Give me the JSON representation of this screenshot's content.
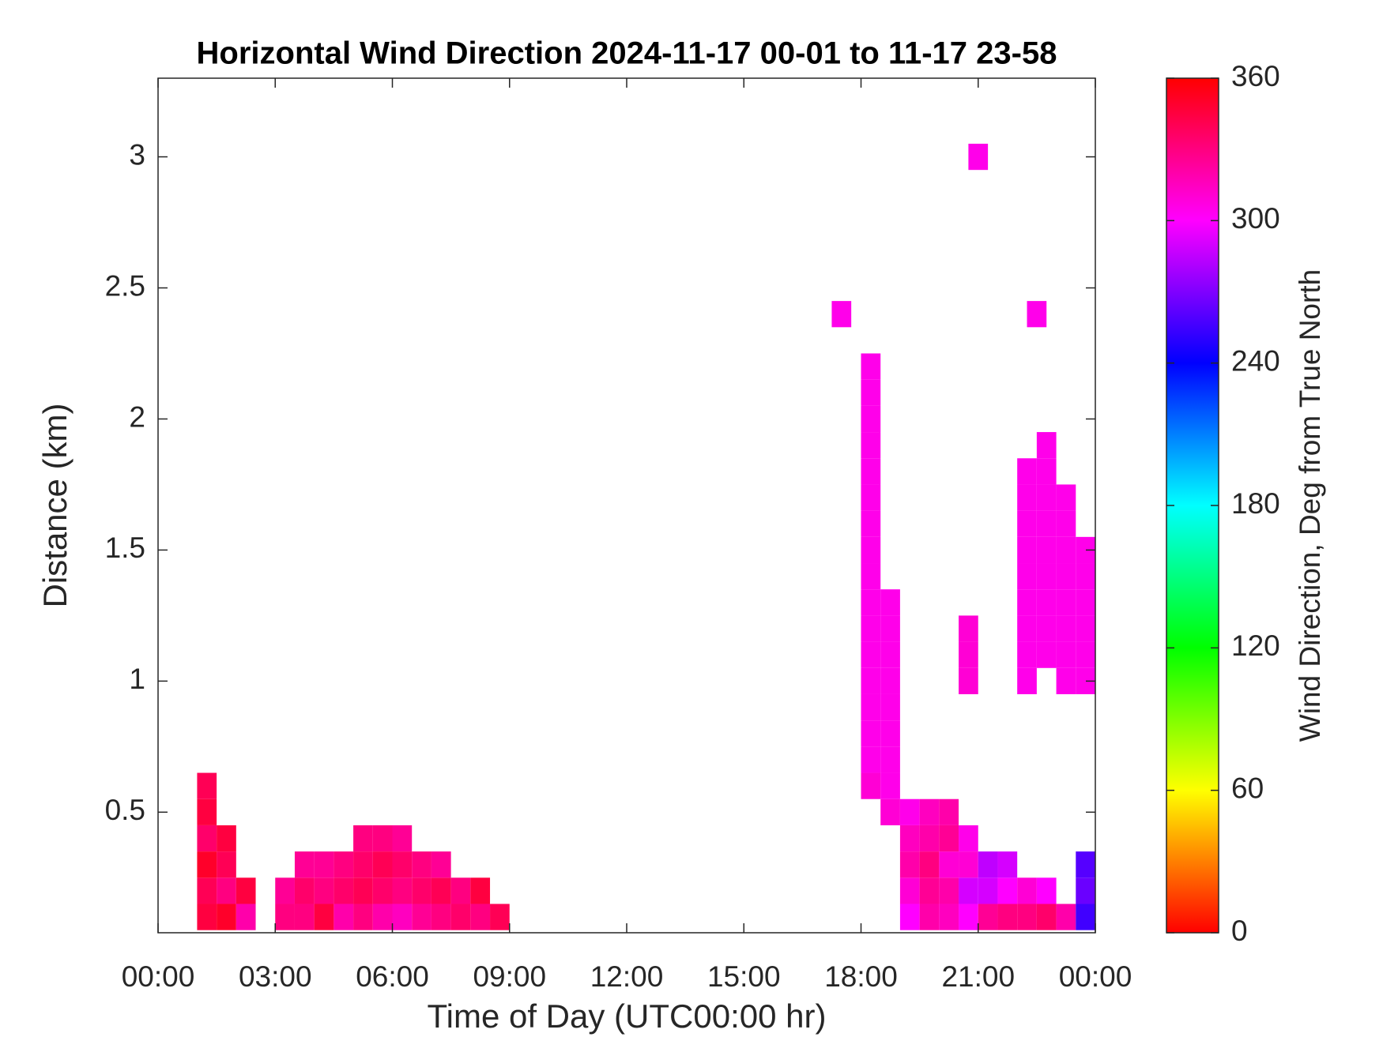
{
  "chart_data": {
    "type": "heatmap",
    "title": "Horizontal Wind Direction 2024-11-17 00-01 to 11-17 23-58",
    "x_label": "Time of Day (UTC00:00 hr)",
    "y_label": "Distance (km)",
    "colorbar_label": "Wind Direction, Deg from True North",
    "xlim": [
      0,
      24
    ],
    "xticks": [
      {
        "value": 0,
        "label": "00:00"
      },
      {
        "value": 3,
        "label": "03:00"
      },
      {
        "value": 6,
        "label": "06:00"
      },
      {
        "value": 9,
        "label": "09:00"
      },
      {
        "value": 12,
        "label": "12:00"
      },
      {
        "value": 15,
        "label": "15:00"
      },
      {
        "value": 18,
        "label": "18:00"
      },
      {
        "value": 21,
        "label": "21:00"
      },
      {
        "value": 24,
        "label": "00:00"
      }
    ],
    "ylim": [
      0.04,
      3.3
    ],
    "yticks": [
      0.5,
      1,
      1.5,
      2,
      2.5,
      3
    ],
    "clim": [
      0,
      360
    ],
    "cticks": [
      0,
      60,
      120,
      180,
      240,
      300,
      360
    ],
    "colormap": "hsv",
    "x": [
      1.25,
      1.25,
      1.25,
      1.25,
      1.25,
      1.25,
      1.75,
      1.75,
      1.75,
      1.75,
      2.25,
      2.25,
      3.25,
      3.25,
      3.75,
      3.75,
      3.75,
      4.25,
      4.25,
      4.25,
      4.75,
      4.75,
      4.75,
      5.25,
      5.25,
      5.25,
      5.25,
      5.75,
      5.75,
      5.75,
      5.75,
      6.25,
      6.25,
      6.25,
      6.25,
      6.75,
      6.75,
      6.75,
      7.25,
      7.25,
      7.25,
      7.75,
      7.75,
      8.25,
      8.25,
      8.75,
      17.5,
      18.25,
      18.25,
      18.25,
      18.25,
      18.25,
      18.25,
      18.25,
      18.25,
      18.25,
      18.25,
      18.25,
      18.25,
      18.25,
      18.25,
      18.25,
      18.25,
      18.25,
      18.75,
      18.75,
      18.75,
      18.75,
      18.75,
      18.75,
      18.75,
      18.75,
      18.75,
      19.25,
      19.25,
      19.25,
      19.25,
      19.25,
      19.75,
      19.75,
      19.75,
      19.75,
      19.75,
      20.25,
      20.25,
      20.25,
      20.25,
      20.25,
      20.75,
      20.75,
      20.75,
      20.75,
      21.25,
      21.25,
      21.25,
      21.75,
      21.75,
      21.75,
      22.25,
      22.25,
      22.75,
      22.75,
      23.25,
      23.75,
      23.75,
      23.75,
      20.75,
      20.75,
      20.75,
      22.25,
      22.25,
      22.25,
      22.25,
      22.25,
      22.25,
      22.25,
      22.25,
      22.25,
      22.75,
      22.75,
      22.75,
      22.75,
      22.75,
      22.75,
      22.75,
      22.75,
      22.75,
      23.25,
      23.25,
      23.25,
      23.25,
      23.25,
      23.25,
      23.25,
      23.25,
      23.75,
      23.75,
      23.75,
      23.75,
      23.75,
      23.75,
      21.0,
      22.5
    ],
    "y": [
      0.1,
      0.2,
      0.3,
      0.4,
      0.5,
      0.6,
      0.1,
      0.2,
      0.3,
      0.4,
      0.1,
      0.2,
      0.1,
      0.2,
      0.1,
      0.2,
      0.3,
      0.1,
      0.2,
      0.3,
      0.1,
      0.2,
      0.3,
      0.1,
      0.2,
      0.3,
      0.4,
      0.1,
      0.2,
      0.3,
      0.4,
      0.1,
      0.2,
      0.3,
      0.4,
      0.1,
      0.2,
      0.3,
      0.1,
      0.2,
      0.3,
      0.1,
      0.2,
      0.1,
      0.2,
      0.1,
      2.4,
      0.6,
      0.7,
      0.8,
      0.9,
      1.0,
      1.1,
      1.2,
      1.3,
      1.4,
      1.5,
      1.6,
      1.7,
      1.8,
      1.9,
      2.0,
      2.1,
      2.2,
      0.5,
      0.6,
      0.7,
      0.8,
      0.9,
      1.0,
      1.1,
      1.2,
      1.3,
      0.1,
      0.2,
      0.3,
      0.4,
      0.5,
      0.1,
      0.2,
      0.3,
      0.4,
      0.5,
      0.1,
      0.2,
      0.3,
      0.4,
      0.5,
      0.1,
      0.2,
      0.3,
      0.4,
      0.1,
      0.2,
      0.3,
      0.1,
      0.2,
      0.3,
      0.1,
      0.2,
      0.1,
      0.2,
      0.1,
      0.1,
      0.2,
      0.3,
      1.0,
      1.1,
      1.2,
      1.0,
      1.1,
      1.2,
      1.3,
      1.4,
      1.5,
      1.6,
      1.7,
      1.8,
      1.1,
      1.2,
      1.3,
      1.4,
      1.5,
      1.6,
      1.7,
      1.8,
      1.9,
      1.0,
      1.1,
      1.2,
      1.3,
      1.4,
      1.5,
      1.6,
      1.7,
      1.0,
      1.1,
      1.2,
      1.3,
      1.4,
      1.5,
      3.0,
      2.4
    ],
    "values": [
      345,
      340,
      350,
      335,
      345,
      340,
      350,
      330,
      340,
      345,
      320,
      345,
      330,
      325,
      330,
      335,
      325,
      345,
      330,
      325,
      320,
      335,
      330,
      330,
      340,
      335,
      330,
      320,
      335,
      340,
      330,
      315,
      330,
      335,
      325,
      325,
      335,
      330,
      330,
      340,
      325,
      335,
      330,
      330,
      345,
      340,
      305,
      310,
      305,
      305,
      305,
      305,
      305,
      305,
      305,
      305,
      305,
      305,
      305,
      305,
      305,
      305,
      305,
      305,
      310,
      305,
      305,
      305,
      305,
      305,
      305,
      305,
      305,
      300,
      310,
      320,
      315,
      305,
      320,
      325,
      330,
      320,
      315,
      315,
      320,
      310,
      325,
      320,
      300,
      290,
      310,
      305,
      325,
      290,
      285,
      330,
      300,
      290,
      330,
      310,
      335,
      300,
      320,
      255,
      265,
      260,
      310,
      310,
      310,
      305,
      305,
      305,
      305,
      305,
      305,
      305,
      305,
      305,
      305,
      305,
      305,
      305,
      305,
      305,
      305,
      305,
      305,
      305,
      305,
      305,
      305,
      305,
      305,
      305,
      305,
      305,
      305,
      305,
      305,
      305,
      305,
      305,
      305
    ]
  }
}
